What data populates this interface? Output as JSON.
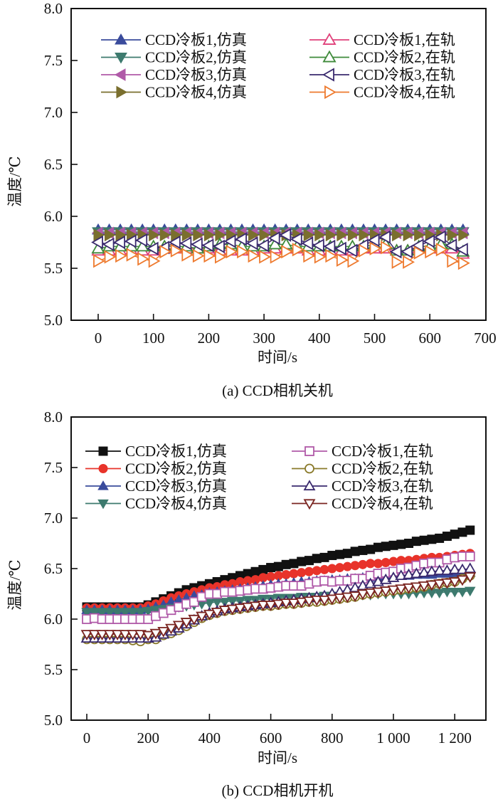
{
  "chart_data": [
    {
      "id": "a",
      "type": "scatter",
      "caption": "(a) CCD相机关机",
      "xlabel": "时间/s",
      "ylabel": "温度/℃",
      "xlim": [
        -50,
        700
      ],
      "ylim": [
        5.0,
        8.0
      ],
      "xticks": [
        0,
        100,
        200,
        300,
        400,
        500,
        600,
        700
      ],
      "xtick_labels": [
        "0",
        "100",
        "200",
        "300",
        "400",
        "500",
        "600",
        "700"
      ],
      "yticks": [
        5.0,
        5.5,
        6.0,
        6.5,
        7.0,
        7.5,
        8.0
      ],
      "ytick_labels": [
        "5.0",
        "5.5",
        "6.0",
        "6.5",
        "7.0",
        "7.5",
        "8.0"
      ],
      "grid": false,
      "legend_placement": "top",
      "x": [
        0,
        20,
        40,
        60,
        80,
        100,
        120,
        140,
        160,
        180,
        200,
        220,
        240,
        260,
        280,
        300,
        320,
        340,
        360,
        380,
        400,
        420,
        440,
        460,
        480,
        500,
        520,
        540,
        560,
        580,
        600,
        620,
        640,
        660
      ],
      "series": [
        {
          "name": "CCD冷板1,仿真",
          "color": "#3a4b9c",
          "marker": "triangle-up",
          "filled": true,
          "values": [
            5.87,
            5.87,
            5.87,
            5.87,
            5.87,
            5.87,
            5.87,
            5.87,
            5.87,
            5.87,
            5.87,
            5.87,
            5.87,
            5.87,
            5.87,
            5.87,
            5.87,
            5.87,
            5.87,
            5.87,
            5.87,
            5.87,
            5.87,
            5.87,
            5.87,
            5.87,
            5.87,
            5.87,
            5.87,
            5.87,
            5.87,
            5.87,
            5.87,
            5.87
          ]
        },
        {
          "name": "CCD冷板2,仿真",
          "color": "#3d7a6e",
          "marker": "triangle-down",
          "filled": true,
          "values": [
            5.85,
            5.85,
            5.85,
            5.85,
            5.85,
            5.85,
            5.85,
            5.85,
            5.85,
            5.85,
            5.85,
            5.85,
            5.85,
            5.85,
            5.85,
            5.85,
            5.85,
            5.85,
            5.85,
            5.85,
            5.85,
            5.85,
            5.85,
            5.85,
            5.85,
            5.85,
            5.85,
            5.85,
            5.85,
            5.85,
            5.85,
            5.85,
            5.85,
            5.85
          ]
        },
        {
          "name": "CCD冷板3,仿真",
          "color": "#b05aa8",
          "marker": "triangle-left",
          "filled": true,
          "values": [
            5.84,
            5.84,
            5.84,
            5.84,
            5.84,
            5.84,
            5.84,
            5.84,
            5.84,
            5.84,
            5.84,
            5.84,
            5.84,
            5.84,
            5.84,
            5.84,
            5.84,
            5.84,
            5.84,
            5.84,
            5.84,
            5.84,
            5.84,
            5.84,
            5.84,
            5.84,
            5.84,
            5.84,
            5.84,
            5.84,
            5.84,
            5.84,
            5.84,
            5.84
          ]
        },
        {
          "name": "CCD冷板4,仿真",
          "color": "#7a6f2e",
          "marker": "triangle-right",
          "filled": true,
          "values": [
            5.82,
            5.82,
            5.82,
            5.82,
            5.82,
            5.82,
            5.82,
            5.82,
            5.82,
            5.82,
            5.82,
            5.82,
            5.82,
            5.82,
            5.82,
            5.82,
            5.82,
            5.82,
            5.82,
            5.82,
            5.82,
            5.82,
            5.82,
            5.82,
            5.82,
            5.82,
            5.82,
            5.82,
            5.82,
            5.82,
            5.82,
            5.82,
            5.82,
            5.82
          ]
        },
        {
          "name": "CCD冷板1,在轨",
          "color": "#e0407a",
          "marker": "triangle-up",
          "filled": false,
          "values": [
            5.67,
            5.67,
            5.67,
            5.67,
            5.67,
            5.67,
            5.69,
            5.69,
            5.69,
            5.69,
            5.69,
            5.67,
            5.67,
            5.67,
            5.67,
            5.69,
            5.69,
            5.69,
            5.69,
            5.67,
            5.67,
            5.67,
            5.67,
            5.67,
            5.69,
            5.69,
            5.69,
            5.67,
            5.67,
            5.69,
            5.69,
            5.69,
            5.69,
            5.64
          ]
        },
        {
          "name": "CCD冷板2,在轨",
          "color": "#3e8a3a",
          "marker": "triangle-up",
          "filled": false,
          "values": [
            5.69,
            5.71,
            5.71,
            5.71,
            5.71,
            5.71,
            5.71,
            5.71,
            5.71,
            5.69,
            5.71,
            5.73,
            5.73,
            5.71,
            5.71,
            5.71,
            5.73,
            5.73,
            5.71,
            5.71,
            5.71,
            5.71,
            5.71,
            5.71,
            5.71,
            5.73,
            5.73,
            5.67,
            5.67,
            5.71,
            5.71,
            5.73,
            5.73,
            5.66
          ]
        },
        {
          "name": "CCD冷板3,在轨",
          "color": "#3a2a6e",
          "marker": "triangle-left",
          "filled": false,
          "values": [
            5.75,
            5.73,
            5.75,
            5.76,
            5.77,
            5.69,
            5.7,
            5.75,
            5.74,
            5.73,
            5.72,
            5.71,
            5.76,
            5.78,
            5.74,
            5.72,
            5.79,
            5.82,
            5.78,
            5.74,
            5.72,
            5.71,
            5.69,
            5.67,
            5.72,
            5.77,
            5.8,
            5.66,
            5.66,
            5.72,
            5.76,
            5.8,
            5.72,
            5.68
          ]
        },
        {
          "name": "CCD冷板4,在轨",
          "color": "#ee7a2e",
          "marker": "triangle-right",
          "filled": false,
          "values": [
            5.57,
            5.61,
            5.62,
            5.63,
            5.59,
            5.57,
            5.66,
            5.67,
            5.63,
            5.62,
            5.62,
            5.61,
            5.66,
            5.66,
            5.62,
            5.61,
            5.61,
            5.66,
            5.68,
            5.62,
            5.61,
            5.62,
            5.58,
            5.57,
            5.67,
            5.69,
            5.7,
            5.56,
            5.56,
            5.65,
            5.66,
            5.68,
            5.57,
            5.55
          ]
        }
      ]
    },
    {
      "id": "b",
      "type": "scatter",
      "caption": "(b) CCD相机开机",
      "xlabel": "时间/s",
      "ylabel": "温度/℃",
      "xlim": [
        -50,
        1300
      ],
      "ylim": [
        5.0,
        8.0
      ],
      "xticks": [
        0,
        200,
        400,
        600,
        800,
        1000,
        1200
      ],
      "xtick_labels": [
        "0",
        "200",
        "400",
        "600",
        "800",
        "1 000",
        "1 200"
      ],
      "yticks": [
        5.0,
        5.5,
        6.0,
        6.5,
        7.0,
        7.5,
        8.0
      ],
      "ytick_labels": [
        "5.0",
        "5.5",
        "6.0",
        "6.5",
        "7.0",
        "7.5",
        "8.0"
      ],
      "grid": false,
      "legend_placement": "top",
      "x": [
        0,
        25,
        50,
        75,
        100,
        125,
        150,
        175,
        200,
        225,
        250,
        275,
        300,
        325,
        350,
        375,
        400,
        425,
        450,
        475,
        500,
        525,
        550,
        575,
        600,
        625,
        650,
        675,
        700,
        725,
        750,
        775,
        800,
        825,
        850,
        875,
        900,
        925,
        950,
        975,
        1000,
        1025,
        1050,
        1075,
        1100,
        1125,
        1150,
        1175,
        1200,
        1225,
        1250
      ],
      "series": [
        {
          "name": "CCD冷板1,仿真",
          "color": "#111111",
          "marker": "square",
          "filled": true,
          "values": [
            6.12,
            6.12,
            6.12,
            6.12,
            6.12,
            6.12,
            6.12,
            6.12,
            6.14,
            6.17,
            6.2,
            6.23,
            6.26,
            6.29,
            6.31,
            6.33,
            6.35,
            6.37,
            6.39,
            6.41,
            6.43,
            6.45,
            6.47,
            6.49,
            6.51,
            6.52,
            6.54,
            6.55,
            6.57,
            6.58,
            6.6,
            6.61,
            6.63,
            6.64,
            6.65,
            6.67,
            6.68,
            6.69,
            6.71,
            6.72,
            6.73,
            6.74,
            6.75,
            6.77,
            6.78,
            6.79,
            6.8,
            6.82,
            6.84,
            6.86,
            6.88
          ]
        },
        {
          "name": "CCD冷板2,仿真",
          "color": "#e8332a",
          "marker": "circle",
          "filled": true,
          "values": [
            6.11,
            6.11,
            6.11,
            6.11,
            6.11,
            6.11,
            6.11,
            6.11,
            6.13,
            6.15,
            6.18,
            6.21,
            6.23,
            6.25,
            6.27,
            6.29,
            6.31,
            6.32,
            6.34,
            6.35,
            6.37,
            6.38,
            6.39,
            6.41,
            6.42,
            6.43,
            6.44,
            6.45,
            6.46,
            6.47,
            6.48,
            6.49,
            6.5,
            6.51,
            6.52,
            6.53,
            6.54,
            6.55,
            6.55,
            6.56,
            6.57,
            6.58,
            6.58,
            6.59,
            6.6,
            6.61,
            6.61,
            6.62,
            6.63,
            6.64,
            6.65
          ]
        },
        {
          "name": "CCD冷板3,仿真",
          "color": "#3a4b9c",
          "marker": "triangle-up",
          "filled": true,
          "values": [
            6.09,
            6.09,
            6.09,
            6.09,
            6.09,
            6.09,
            6.09,
            6.09,
            6.1,
            6.12,
            6.14,
            6.17,
            6.19,
            6.21,
            6.23,
            6.24,
            6.26,
            6.27,
            6.28,
            6.29,
            6.3,
            6.31,
            6.32,
            6.33,
            6.34,
            6.35,
            6.35,
            6.36,
            6.37,
            6.37,
            6.38,
            6.38,
            6.39,
            6.39,
            6.4,
            6.4,
            6.41,
            6.41,
            6.42,
            6.42,
            6.43,
            6.43,
            6.43,
            6.44,
            6.44,
            6.44,
            6.45,
            6.45,
            6.45,
            6.46,
            6.46
          ]
        },
        {
          "name": "CCD冷板4,仿真",
          "color": "#3d7a6e",
          "marker": "triangle-down",
          "filled": true,
          "values": [
            6.07,
            6.07,
            6.07,
            6.07,
            6.07,
            6.07,
            6.07,
            6.07,
            6.08,
            6.09,
            6.1,
            6.11,
            6.12,
            6.13,
            6.14,
            6.15,
            6.16,
            6.17,
            6.17,
            6.18,
            6.18,
            6.19,
            6.19,
            6.2,
            6.2,
            6.21,
            6.21,
            6.21,
            6.22,
            6.22,
            6.22,
            6.23,
            6.23,
            6.23,
            6.24,
            6.24,
            6.24,
            6.24,
            6.25,
            6.25,
            6.25,
            6.25,
            6.25,
            6.26,
            6.26,
            6.26,
            6.26,
            6.27,
            6.27,
            6.27,
            6.28
          ]
        },
        {
          "name": "CCD冷板1,在轨",
          "color": "#b05aa8",
          "marker": "square",
          "filled": false,
          "values": [
            6.0,
            6.01,
            6.0,
            6.0,
            6.0,
            6.0,
            6.0,
            6.0,
            6.0,
            6.03,
            6.06,
            6.09,
            6.12,
            6.15,
            6.17,
            6.22,
            6.25,
            6.25,
            6.27,
            6.27,
            6.28,
            6.29,
            6.3,
            6.3,
            6.31,
            6.32,
            6.33,
            6.33,
            6.33,
            6.35,
            6.37,
            6.38,
            6.37,
            6.38,
            6.38,
            6.4,
            6.4,
            6.43,
            6.45,
            6.46,
            6.47,
            6.5,
            6.51,
            6.53,
            6.55,
            6.56,
            6.56,
            6.59,
            6.61,
            6.62,
            6.62
          ]
        },
        {
          "name": "CCD冷板2,在轨",
          "color": "#8a7a2a",
          "marker": "circle",
          "filled": false,
          "values": [
            5.8,
            5.8,
            5.8,
            5.8,
            5.8,
            5.8,
            5.79,
            5.78,
            5.8,
            5.8,
            5.84,
            5.86,
            5.89,
            5.93,
            5.97,
            6.01,
            6.04,
            6.06,
            6.08,
            6.09,
            6.1,
            6.11,
            6.12,
            6.13,
            6.13,
            6.14,
            6.15,
            6.15,
            6.16,
            6.17,
            6.17,
            6.18,
            6.19,
            6.2,
            6.21,
            6.22,
            6.24,
            6.25,
            6.26,
            6.27,
            6.28,
            6.29,
            6.3,
            6.31,
            6.32,
            6.34,
            6.35,
            6.36,
            6.37,
            6.4,
            6.43
          ]
        },
        {
          "name": "CCD冷板3,在轨",
          "color": "#3a2a6e",
          "marker": "triangle-up",
          "filled": false,
          "values": [
            5.81,
            5.81,
            5.81,
            5.81,
            5.81,
            5.81,
            5.81,
            5.81,
            5.81,
            5.82,
            5.85,
            5.88,
            5.91,
            5.95,
            5.99,
            6.03,
            6.06,
            6.08,
            6.1,
            6.11,
            6.12,
            6.13,
            6.14,
            6.15,
            6.16,
            6.17,
            6.18,
            6.19,
            6.2,
            6.21,
            6.22,
            6.23,
            6.25,
            6.27,
            6.29,
            6.31,
            6.33,
            6.35,
            6.37,
            6.39,
            6.41,
            6.43,
            6.44,
            6.45,
            6.46,
            6.47,
            6.48,
            6.48,
            6.49,
            6.49,
            6.5
          ]
        },
        {
          "name": "CCD冷板4,在轨",
          "color": "#7a2420",
          "marker": "triangle-down",
          "filled": false,
          "values": [
            5.85,
            5.85,
            5.85,
            5.85,
            5.85,
            5.85,
            5.85,
            5.85,
            5.84,
            5.86,
            5.88,
            5.91,
            5.94,
            5.97,
            6.0,
            6.03,
            6.05,
            6.07,
            6.09,
            6.1,
            6.11,
            6.12,
            6.13,
            6.14,
            6.14,
            6.15,
            6.16,
            6.16,
            6.17,
            6.18,
            6.19,
            6.19,
            6.2,
            6.21,
            6.22,
            6.23,
            6.25,
            6.26,
            6.27,
            6.28,
            6.29,
            6.3,
            6.31,
            6.32,
            6.33,
            6.34,
            6.35,
            6.36,
            6.37,
            6.39,
            6.42
          ]
        }
      ]
    }
  ]
}
